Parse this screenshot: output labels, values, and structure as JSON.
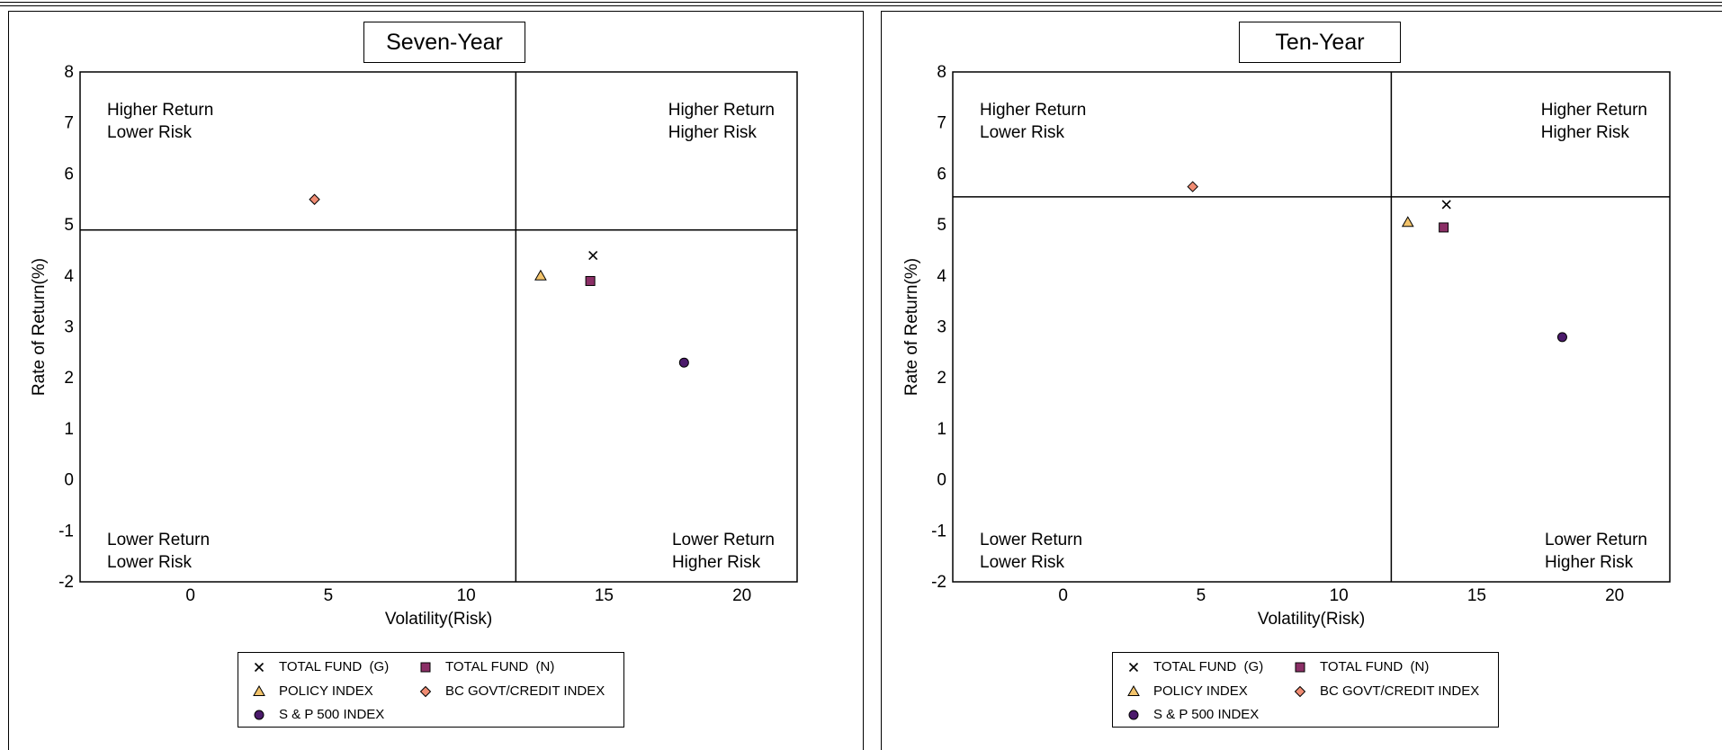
{
  "chart_data": [
    {
      "type": "scatter",
      "title": "Seven-Year",
      "xlabel": "Volatility(Risk)",
      "ylabel": "Rate of Return(%)",
      "xlim": [
        -4,
        22
      ],
      "ylim": [
        -2,
        8
      ],
      "xticks": [
        0,
        5,
        10,
        15,
        20
      ],
      "yticks": [
        -2,
        -1,
        0,
        1,
        2,
        3,
        4,
        5,
        6,
        7,
        8
      ],
      "grid": false,
      "reference_lines": {
        "x": 11.8,
        "y": 4.9
      },
      "quadrant_labels": {
        "top_left": [
          "Higher Return",
          "Lower Risk"
        ],
        "top_right": [
          "Higher Return",
          "Higher Risk"
        ],
        "bottom_left": [
          "Lower Return",
          "Lower Risk"
        ],
        "bottom_right": [
          "Lower Return",
          "Higher Risk"
        ]
      },
      "legend_position": "bottom-center",
      "series": [
        {
          "name": "TOTAL FUND  (G)",
          "marker": "x",
          "color": "#000000",
          "x": 14.6,
          "y": 4.4
        },
        {
          "name": "TOTAL FUND  (N)",
          "marker": "square",
          "color": "#8b2f66",
          "x": 14.5,
          "y": 3.9
        },
        {
          "name": "POLICY INDEX",
          "marker": "triangle",
          "color": "#f2c36b",
          "x": 12.7,
          "y": 4.0
        },
        {
          "name": "BC GOVT/CREDIT INDEX",
          "marker": "diamond",
          "color": "#f08c73",
          "x": 4.5,
          "y": 5.5
        },
        {
          "name": "S & P 500 INDEX",
          "marker": "circle",
          "color": "#4b1a6b",
          "x": 17.9,
          "y": 2.3
        }
      ]
    },
    {
      "type": "scatter",
      "title": "Ten-Year",
      "xlabel": "Volatility(Risk)",
      "ylabel": "Rate of Return(%)",
      "xlim": [
        -4,
        22
      ],
      "ylim": [
        -2,
        8
      ],
      "xticks": [
        0,
        5,
        10,
        15,
        20
      ],
      "yticks": [
        -2,
        -1,
        0,
        1,
        2,
        3,
        4,
        5,
        6,
        7,
        8
      ],
      "grid": false,
      "reference_lines": {
        "x": 11.9,
        "y": 5.55
      },
      "quadrant_labels": {
        "top_left": [
          "Higher Return",
          "Lower Risk"
        ],
        "top_right": [
          "Higher Return",
          "Higher Risk"
        ],
        "bottom_left": [
          "Lower Return",
          "Lower Risk"
        ],
        "bottom_right": [
          "Lower Return",
          "Higher Risk"
        ]
      },
      "legend_position": "bottom-center",
      "series": [
        {
          "name": "TOTAL FUND  (G)",
          "marker": "x",
          "color": "#000000",
          "x": 13.9,
          "y": 5.4
        },
        {
          "name": "TOTAL FUND  (N)",
          "marker": "square",
          "color": "#8b2f66",
          "x": 13.8,
          "y": 4.95
        },
        {
          "name": "POLICY INDEX",
          "marker": "triangle",
          "color": "#f2c36b",
          "x": 12.5,
          "y": 5.05
        },
        {
          "name": "BC GOVT/CREDIT INDEX",
          "marker": "diamond",
          "color": "#f08c73",
          "x": 4.7,
          "y": 5.75
        },
        {
          "name": "S & P 500 INDEX",
          "marker": "circle",
          "color": "#4b1a6b",
          "x": 18.1,
          "y": 2.8
        }
      ]
    }
  ]
}
